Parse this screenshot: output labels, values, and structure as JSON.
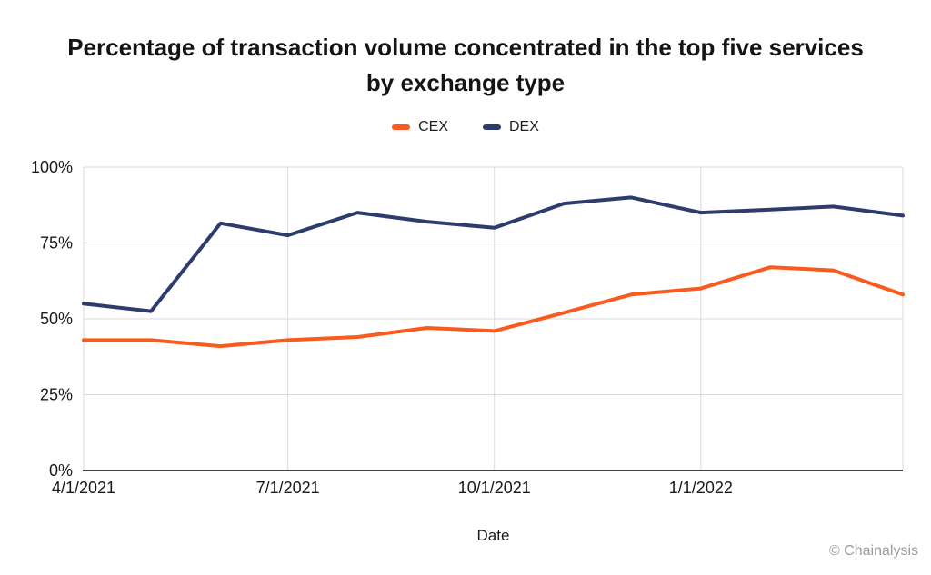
{
  "title": "Percentage of transaction volume concentrated in the top five services by exchange type",
  "legend": [
    {
      "label": "CEX",
      "color": "#FA5A1E"
    },
    {
      "label": "DEX",
      "color": "#2D3C6C"
    }
  ],
  "xlabel": "Date",
  "watermark": "© Chainalysis",
  "chart_data": {
    "type": "line",
    "title": "Percentage of transaction volume concentrated in the top five services by exchange type",
    "xlabel": "Date",
    "ylabel": "",
    "x_dates": [
      "4/1/2021",
      "5/1/2021",
      "6/1/2021",
      "7/1/2021",
      "8/1/2021",
      "9/1/2021",
      "10/1/2021",
      "11/1/2021",
      "12/1/2021",
      "1/1/2022",
      "2/1/2022",
      "3/1/2022",
      "4/1/2022"
    ],
    "x_day_offsets": [
      0,
      30,
      61,
      91,
      122,
      153,
      183,
      214,
      244,
      275,
      306,
      334,
      365
    ],
    "x_total_days": 365,
    "series": [
      {
        "name": "CEX",
        "color": "#FA5A1E",
        "values": [
          43,
          43,
          41,
          43,
          44,
          47,
          46,
          52,
          58,
          60,
          67,
          66,
          58
        ]
      },
      {
        "name": "DEX",
        "color": "#2D3C6C",
        "values": [
          55,
          52.5,
          81.5,
          77.5,
          85,
          82,
          80,
          88,
          90,
          85,
          86,
          87,
          84
        ]
      }
    ],
    "ylim": [
      0,
      100
    ],
    "yticks": [
      0,
      25,
      50,
      75,
      100
    ],
    "ytick_labels": [
      "0%",
      "25%",
      "50%",
      "75%",
      "100%"
    ],
    "xticks": [
      {
        "label": "4/1/2021",
        "day": 0
      },
      {
        "label": "7/1/2021",
        "day": 91
      },
      {
        "label": "10/1/2021",
        "day": 183
      },
      {
        "label": "1/1/2022",
        "day": 275
      }
    ],
    "grid": true,
    "legend_position": "top-center",
    "grid_color": "#D9D9D9",
    "axis_color": "#404040",
    "tick_label_color": "#1a1a1a",
    "line_width": 4
  }
}
